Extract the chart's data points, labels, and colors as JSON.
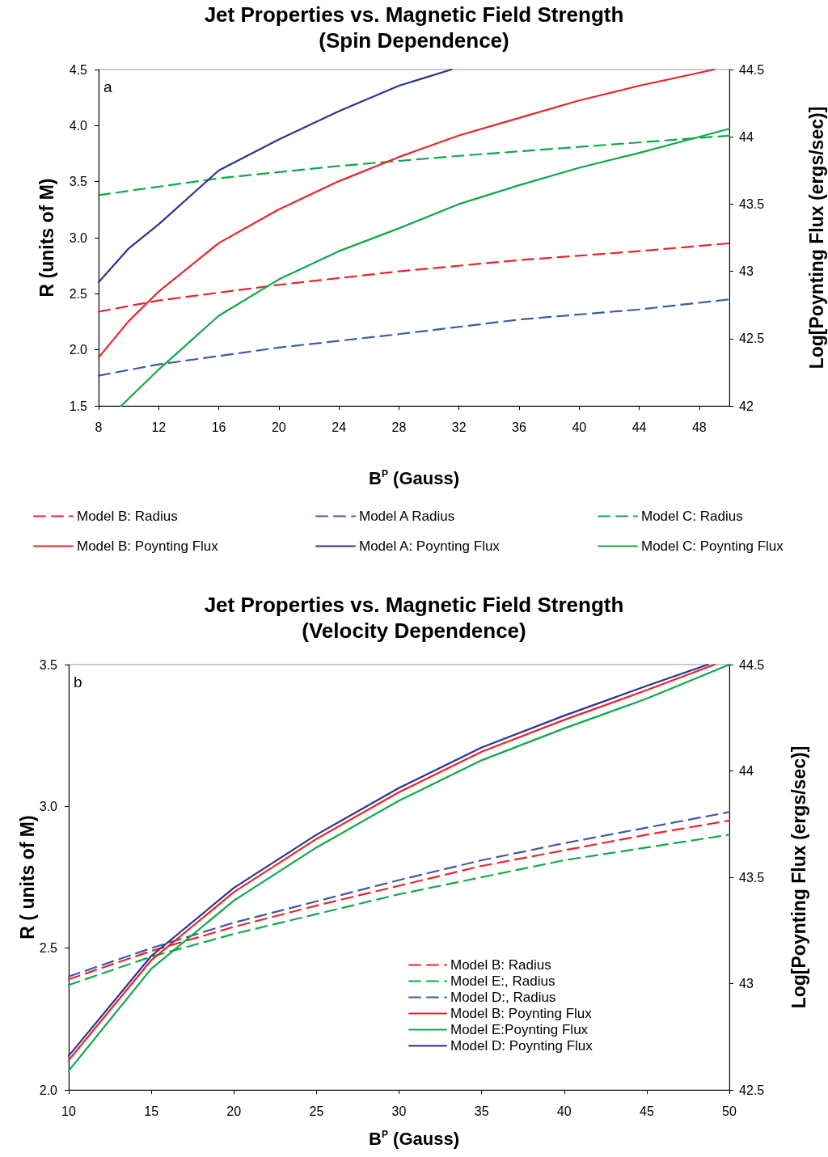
{
  "chart_data": [
    {
      "type": "line",
      "title": "Jet Properties vs. Magnetic Field Strength",
      "subtitle": "(Spin Dependence)",
      "xlabel": "B$^{P}$ (Gauss)",
      "ylabel": "R (units of M)",
      "y2label": "Log[Poynting Flux (ergs/sec)]",
      "annotations": [
        "a"
      ],
      "xlim": [
        8,
        50
      ],
      "xticks": [
        8,
        12,
        16,
        20,
        24,
        28,
        32,
        36,
        40,
        44,
        48
      ],
      "ylim": [
        1.5,
        4.5
      ],
      "yticks": [
        1.5,
        {
          "value": 2,
          "label": "2.0"
        },
        2.5,
        {
          "value": 3,
          "label": "3.0"
        },
        3.5,
        {
          "value": 4,
          "label": "4.0"
        },
        4.5
      ],
      "y2lim": [
        42,
        44.5
      ],
      "y2ticks": [
        42,
        42.5,
        43,
        43.5,
        44,
        44.5
      ],
      "grid": false,
      "legend": "bottom",
      "marker": "none",
      "series": [
        {
          "name": "Model B: Radius",
          "color": "#e8252a",
          "line_style": "dashed",
          "axis": "y",
          "x": [
            8,
            12,
            20,
            28,
            36,
            44,
            50
          ],
          "values": [
            2.34,
            2.44,
            2.58,
            2.7,
            2.8,
            2.88,
            2.95
          ]
        },
        {
          "name": "Model A Radius",
          "color": "#3c5aa8",
          "line_style": "dashed",
          "axis": "y",
          "x": [
            8,
            12,
            20,
            28,
            36,
            44,
            50
          ],
          "values": [
            1.77,
            1.87,
            2.02,
            2.14,
            2.27,
            2.36,
            2.45
          ]
        },
        {
          "name": "Model C: Radius",
          "color": "#10a84a",
          "line_style": "dashed",
          "axis": "y",
          "x": [
            8,
            16,
            24,
            32,
            40,
            50
          ],
          "values": [
            3.38,
            3.53,
            3.64,
            3.73,
            3.81,
            3.91
          ]
        },
        {
          "name": "Model B: Poynting Flux",
          "color": "#e8252a",
          "line_style": "solid",
          "axis": "y2",
          "x": [
            8,
            10,
            12,
            16,
            20,
            24,
            28,
            32,
            36,
            40,
            44,
            49
          ],
          "values": [
            42.36,
            42.63,
            42.85,
            43.21,
            43.46,
            43.67,
            43.85,
            44.01,
            44.14,
            44.27,
            44.38,
            44.5
          ]
        },
        {
          "name": "Model A: Poynting Flux",
          "color": "#2b3590",
          "line_style": "solid",
          "axis": "y2",
          "x": [
            8,
            10,
            12,
            16,
            20,
            24,
            28,
            31.5
          ],
          "values": [
            42.92,
            43.17,
            43.35,
            43.75,
            43.98,
            44.19,
            44.38,
            44.5
          ]
        },
        {
          "name": "Model C: Poynting Flux",
          "color": "#10a84a",
          "line_style": "solid",
          "axis": "y2",
          "x": [
            9.5,
            12,
            16,
            20,
            24,
            28,
            32,
            36,
            40,
            44,
            48,
            50
          ],
          "values": [
            42,
            42.27,
            42.67,
            42.94,
            43.15,
            43.32,
            43.5,
            43.64,
            43.77,
            43.88,
            44,
            44.06
          ]
        }
      ]
    },
    {
      "type": "line",
      "title": "Jet Properties vs. Magnetic Field Strength",
      "subtitle": "(Velocity Dependence)",
      "xlabel": "B$^{P}$ (Gauss)",
      "ylabel": "R ( units of M)",
      "y2label": "Log[Poynting Flux (ergs/sec)]",
      "annotations": [
        "b"
      ],
      "xlim": [
        10,
        50
      ],
      "xticks": [
        10,
        15,
        20,
        25,
        30,
        35,
        40,
        45,
        50
      ],
      "ylim": [
        2,
        3.5
      ],
      "yticks": [
        {
          "value": 2,
          "label": "2.0"
        },
        2.5,
        {
          "value": 3,
          "label": "3.0"
        },
        3.5
      ],
      "y2lim": [
        42.5,
        44.5
      ],
      "y2ticks": [
        42.5,
        43,
        43.5,
        44,
        44.5
      ],
      "grid": false,
      "legend": "bottom right",
      "marker": "none",
      "series": [
        {
          "name": "Model B: Radius",
          "color": "#e8252a",
          "line_style": "dashed",
          "axis": "y",
          "x": [
            10,
            15,
            20,
            25,
            30,
            35,
            40,
            45,
            50
          ],
          "values": [
            2.39,
            2.49,
            2.575,
            2.65,
            2.72,
            2.79,
            2.845,
            2.9,
            2.95
          ]
        },
        {
          "name": "Model E:, Radius",
          "color": "#10a84a",
          "line_style": "dashed",
          "axis": "y",
          "x": [
            10,
            15,
            20,
            25,
            30,
            35,
            40,
            45,
            50
          ],
          "values": [
            2.37,
            2.47,
            2.55,
            2.62,
            2.69,
            2.75,
            2.81,
            2.855,
            2.9
          ]
        },
        {
          "name": "Model D:, Radius",
          "color": "#3c5aa8",
          "line_style": "dashed",
          "axis": "y",
          "x": [
            10,
            15,
            20,
            25,
            30,
            35,
            40,
            45,
            50
          ],
          "values": [
            2.4,
            2.5,
            2.59,
            2.665,
            2.74,
            2.81,
            2.87,
            2.925,
            2.98
          ]
        },
        {
          "name": "Model B: Poynting Flux",
          "color": "#e8252a",
          "line_style": "solid",
          "axis": "y2",
          "x": [
            10,
            15,
            20,
            25,
            30,
            35,
            40,
            45,
            49.1
          ],
          "values": [
            42.64,
            43.11,
            43.43,
            43.68,
            43.9,
            44.09,
            44.24,
            44.38,
            44.5
          ]
        },
        {
          "name": "Model E:Poynting Flux",
          "color": "#10a84a",
          "line_style": "solid",
          "axis": "y2",
          "x": [
            10,
            15,
            20,
            25,
            30,
            35,
            40,
            45,
            50
          ],
          "values": [
            42.59,
            43.07,
            43.39,
            43.64,
            43.86,
            44.05,
            44.2,
            44.34,
            44.5
          ]
        },
        {
          "name": "Model D: Poynting Flux",
          "color": "#2b3590",
          "line_style": "solid",
          "axis": "y2",
          "x": [
            10,
            15,
            20,
            25,
            30,
            35,
            40,
            45,
            48.7
          ],
          "values": [
            42.66,
            43.13,
            43.45,
            43.7,
            43.92,
            44.11,
            44.26,
            44.4,
            44.5
          ]
        }
      ]
    }
  ]
}
